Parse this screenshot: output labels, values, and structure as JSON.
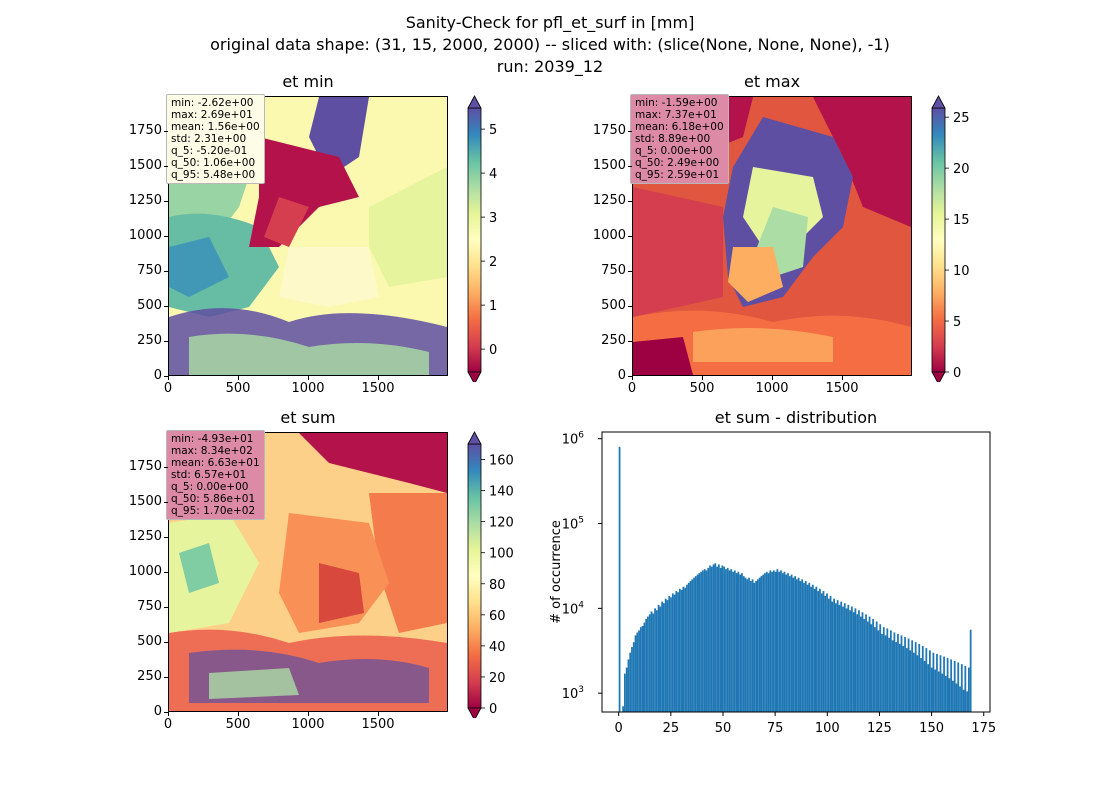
{
  "figure": {
    "title_line1": "Sanity-Check for pfl_et_surf in [mm]",
    "title_line2": "original data shape: (31, 15, 2000, 2000) -- sliced with: (slice(None, None, None), -1)",
    "title_line3": "run: 2039_12"
  },
  "chart_data": [
    {
      "type": "heatmap",
      "title": "et min",
      "xlim": [
        0,
        2000
      ],
      "ylim": [
        0,
        2000
      ],
      "xticks": [
        "0",
        "500",
        "1000",
        "1500"
      ],
      "yticks": [
        "0",
        "250",
        "500",
        "750",
        "1000",
        "1250",
        "1500",
        "1750"
      ],
      "colorbar": {
        "min": -0.52,
        "max": 5.48,
        "ticks": [
          "0",
          "1",
          "2",
          "3",
          "4",
          "5"
        ],
        "colormap": "Spectral",
        "extend": "both"
      },
      "stats": [
        "min: -2.62e+00",
        "max: 2.69e+01",
        "mean: 1.56e+00",
        "std: 2.31e+00",
        "q_5: -5.20e-01",
        "q_50: 1.06e+00",
        "q_95: 5.48e+00"
      ],
      "stats_box_color": "#fdfce6"
    },
    {
      "type": "heatmap",
      "title": "et max",
      "xlim": [
        0,
        2000
      ],
      "ylim": [
        0,
        2000
      ],
      "xticks": [
        "0",
        "500",
        "1000",
        "1500"
      ],
      "yticks": [
        "0",
        "250",
        "500",
        "750",
        "1000",
        "1250",
        "1500",
        "1750"
      ],
      "colorbar": {
        "min": 0,
        "max": 25.9,
        "ticks": [
          "0",
          "5",
          "10",
          "15",
          "20",
          "25"
        ],
        "colormap": "Spectral",
        "extend": "both"
      },
      "stats": [
        "min: -1.59e+00",
        "max: 7.37e+01",
        "mean: 6.18e+00",
        "std: 8.89e+00",
        "q_5: 0.00e+00",
        "q_50: 2.49e+00",
        "q_95: 2.59e+01"
      ],
      "stats_box_color": "#dd8aa6"
    },
    {
      "type": "heatmap",
      "title": "et sum",
      "xlim": [
        0,
        2000
      ],
      "ylim": [
        0,
        2000
      ],
      "xticks": [
        "0",
        "500",
        "1000",
        "1500"
      ],
      "yticks": [
        "0",
        "250",
        "500",
        "750",
        "1000",
        "1250",
        "1500",
        "1750"
      ],
      "colorbar": {
        "min": 0,
        "max": 170,
        "ticks": [
          "0",
          "20",
          "40",
          "60",
          "80",
          "100",
          "120",
          "140",
          "160"
        ],
        "colormap": "Spectral",
        "extend": "both"
      },
      "stats": [
        "min: -4.93e+01",
        "max: 8.34e+02",
        "mean: 6.63e+01",
        "std: 6.57e+01",
        "q_5: 0.00e+00",
        "q_50: 5.86e+01",
        "q_95: 1.70e+02"
      ],
      "stats_box_color": "#dd8aa6"
    },
    {
      "type": "bar",
      "title": "et sum - distribution",
      "xlabel": "",
      "ylabel": "# of occurrence",
      "yscale": "log",
      "xlim": [
        -8,
        178
      ],
      "ylim": [
        600,
        1200000
      ],
      "xticks": [
        0,
        25,
        50,
        75,
        100,
        125,
        150,
        175
      ],
      "yticks": [
        {
          "value": 1000,
          "base": "10",
          "exp": "3"
        },
        {
          "value": 10000,
          "base": "10",
          "exp": "4"
        },
        {
          "value": 100000,
          "base": "10",
          "exp": "5"
        },
        {
          "value": 1000000,
          "base": "10",
          "exp": "6"
        }
      ],
      "color": "#1f77b4",
      "bin_start": 0,
      "bin_width": 0.85,
      "values": [
        800000,
        600,
        700,
        1700,
        2000,
        2500,
        3000,
        3500,
        4000,
        4800,
        5200,
        5500,
        6000,
        6200,
        6800,
        7500,
        8000,
        8500,
        9200,
        8700,
        10000,
        9500,
        11000,
        10500,
        12000,
        11500,
        13000,
        12500,
        14000,
        13500,
        15000,
        14500,
        16000,
        15500,
        17000,
        16500,
        18000,
        17500,
        19000,
        20000,
        21000,
        22000,
        23000,
        24000,
        25000,
        26000,
        27000,
        28000,
        29000,
        28000,
        30000,
        32000,
        31000,
        33000,
        34000,
        31000,
        33000,
        30000,
        32000,
        31000,
        29000,
        30000,
        28000,
        29000,
        27000,
        28000,
        26000,
        27000,
        25000,
        26000,
        24000,
        23000,
        22000,
        23000,
        21000,
        22000,
        20000,
        21000,
        22000,
        23000,
        24000,
        25000,
        26000,
        27000,
        26000,
        28000,
        27000,
        28000,
        27000,
        29000,
        27000,
        28000,
        26000,
        27000,
        25000,
        26000,
        24000,
        25000,
        23000,
        24000,
        22000,
        23000,
        21000,
        22000,
        20000,
        21000,
        19000,
        20000,
        18000,
        19000,
        17000,
        18000,
        16000,
        17000,
        15000,
        16000,
        14000,
        15000,
        13000,
        14000,
        12000,
        13000,
        11500,
        12500,
        11000,
        12000,
        10500,
        11500,
        10000,
        11000,
        9500,
        10500,
        9000,
        10000,
        8500,
        9500,
        8000,
        9000,
        7500,
        8500,
        7000,
        8000,
        6500,
        7500,
        6000,
        7000,
        5500,
        6500,
        5000,
        6000,
        4800,
        5800,
        4500,
        5500,
        4200,
        5200,
        4000,
        5000,
        3800,
        4800,
        3600,
        4600,
        3400,
        4400,
        3200,
        4200,
        3000,
        4000,
        2800,
        3800,
        2600,
        3600,
        2400,
        3400,
        2200,
        3200,
        2000,
        3000,
        1900,
        2900,
        1800,
        2800,
        1700,
        2700,
        1600,
        2600,
        1500,
        2500,
        1400,
        2400,
        1300,
        2300,
        1200,
        2200,
        1100,
        2100,
        1050,
        2000,
        5600
      ]
    }
  ]
}
